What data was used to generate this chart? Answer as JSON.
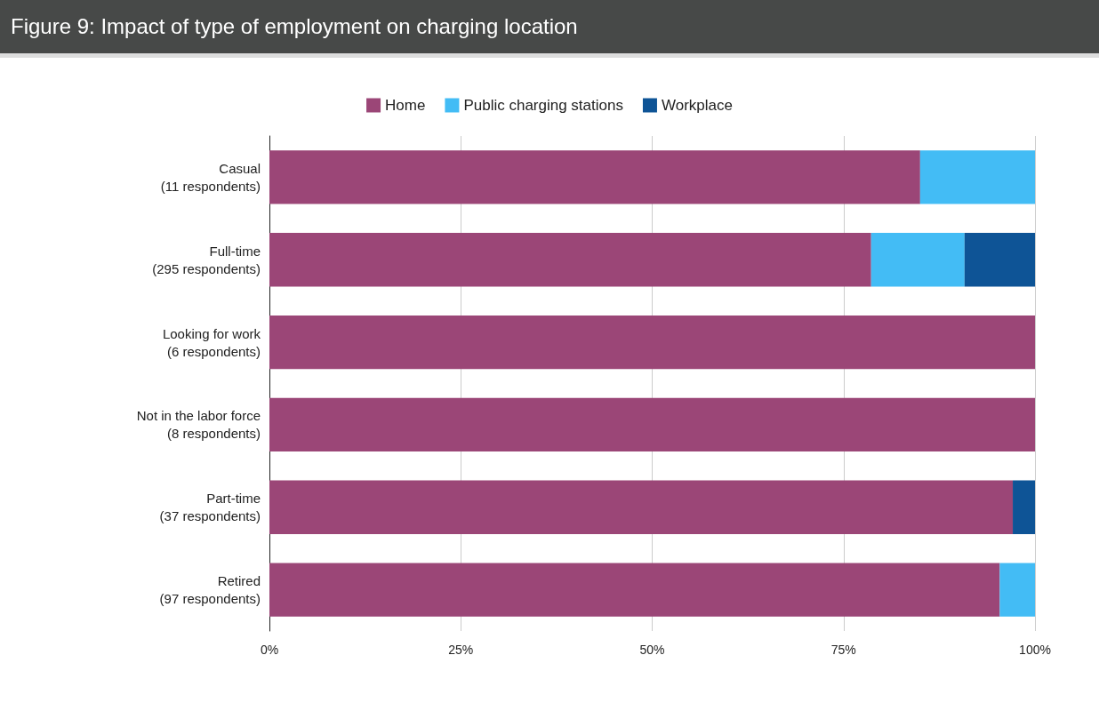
{
  "chart_data": {
    "type": "bar",
    "orientation": "horizontal",
    "stacked": true,
    "title": "Figure 9: Impact of type of employment on charging location",
    "categories": [
      "Casual\n(11 respondents)",
      "Full-time\n(295 respondents)",
      "Looking for work\n(6 respondents)",
      "Not in the labor force\n(8 respondents)",
      "Part-time\n(37 respondents)",
      "Retired\n(97 respondents)"
    ],
    "series": [
      {
        "name": "Home",
        "color": "#9b4677",
        "values": [
          85.0,
          78.6,
          100,
          100,
          97.1,
          95.4
        ]
      },
      {
        "name": "Public charging stations",
        "color": "#43bcf5",
        "values": [
          15.0,
          12.2,
          null,
          null,
          null,
          4.6
        ]
      },
      {
        "name": "Workplace",
        "color": "#0e5496",
        "values": [
          null,
          9.2,
          null,
          null,
          2.9,
          null
        ]
      }
    ],
    "xlim": [
      0,
      100
    ],
    "xticks": [
      {
        "value": 0,
        "label": "0%"
      },
      {
        "value": 25,
        "label": "25%"
      },
      {
        "value": 50,
        "label": "50%"
      },
      {
        "value": 75,
        "label": "75%"
      },
      {
        "value": 100,
        "label": "100%"
      }
    ],
    "grid": "x",
    "legend": "top"
  }
}
